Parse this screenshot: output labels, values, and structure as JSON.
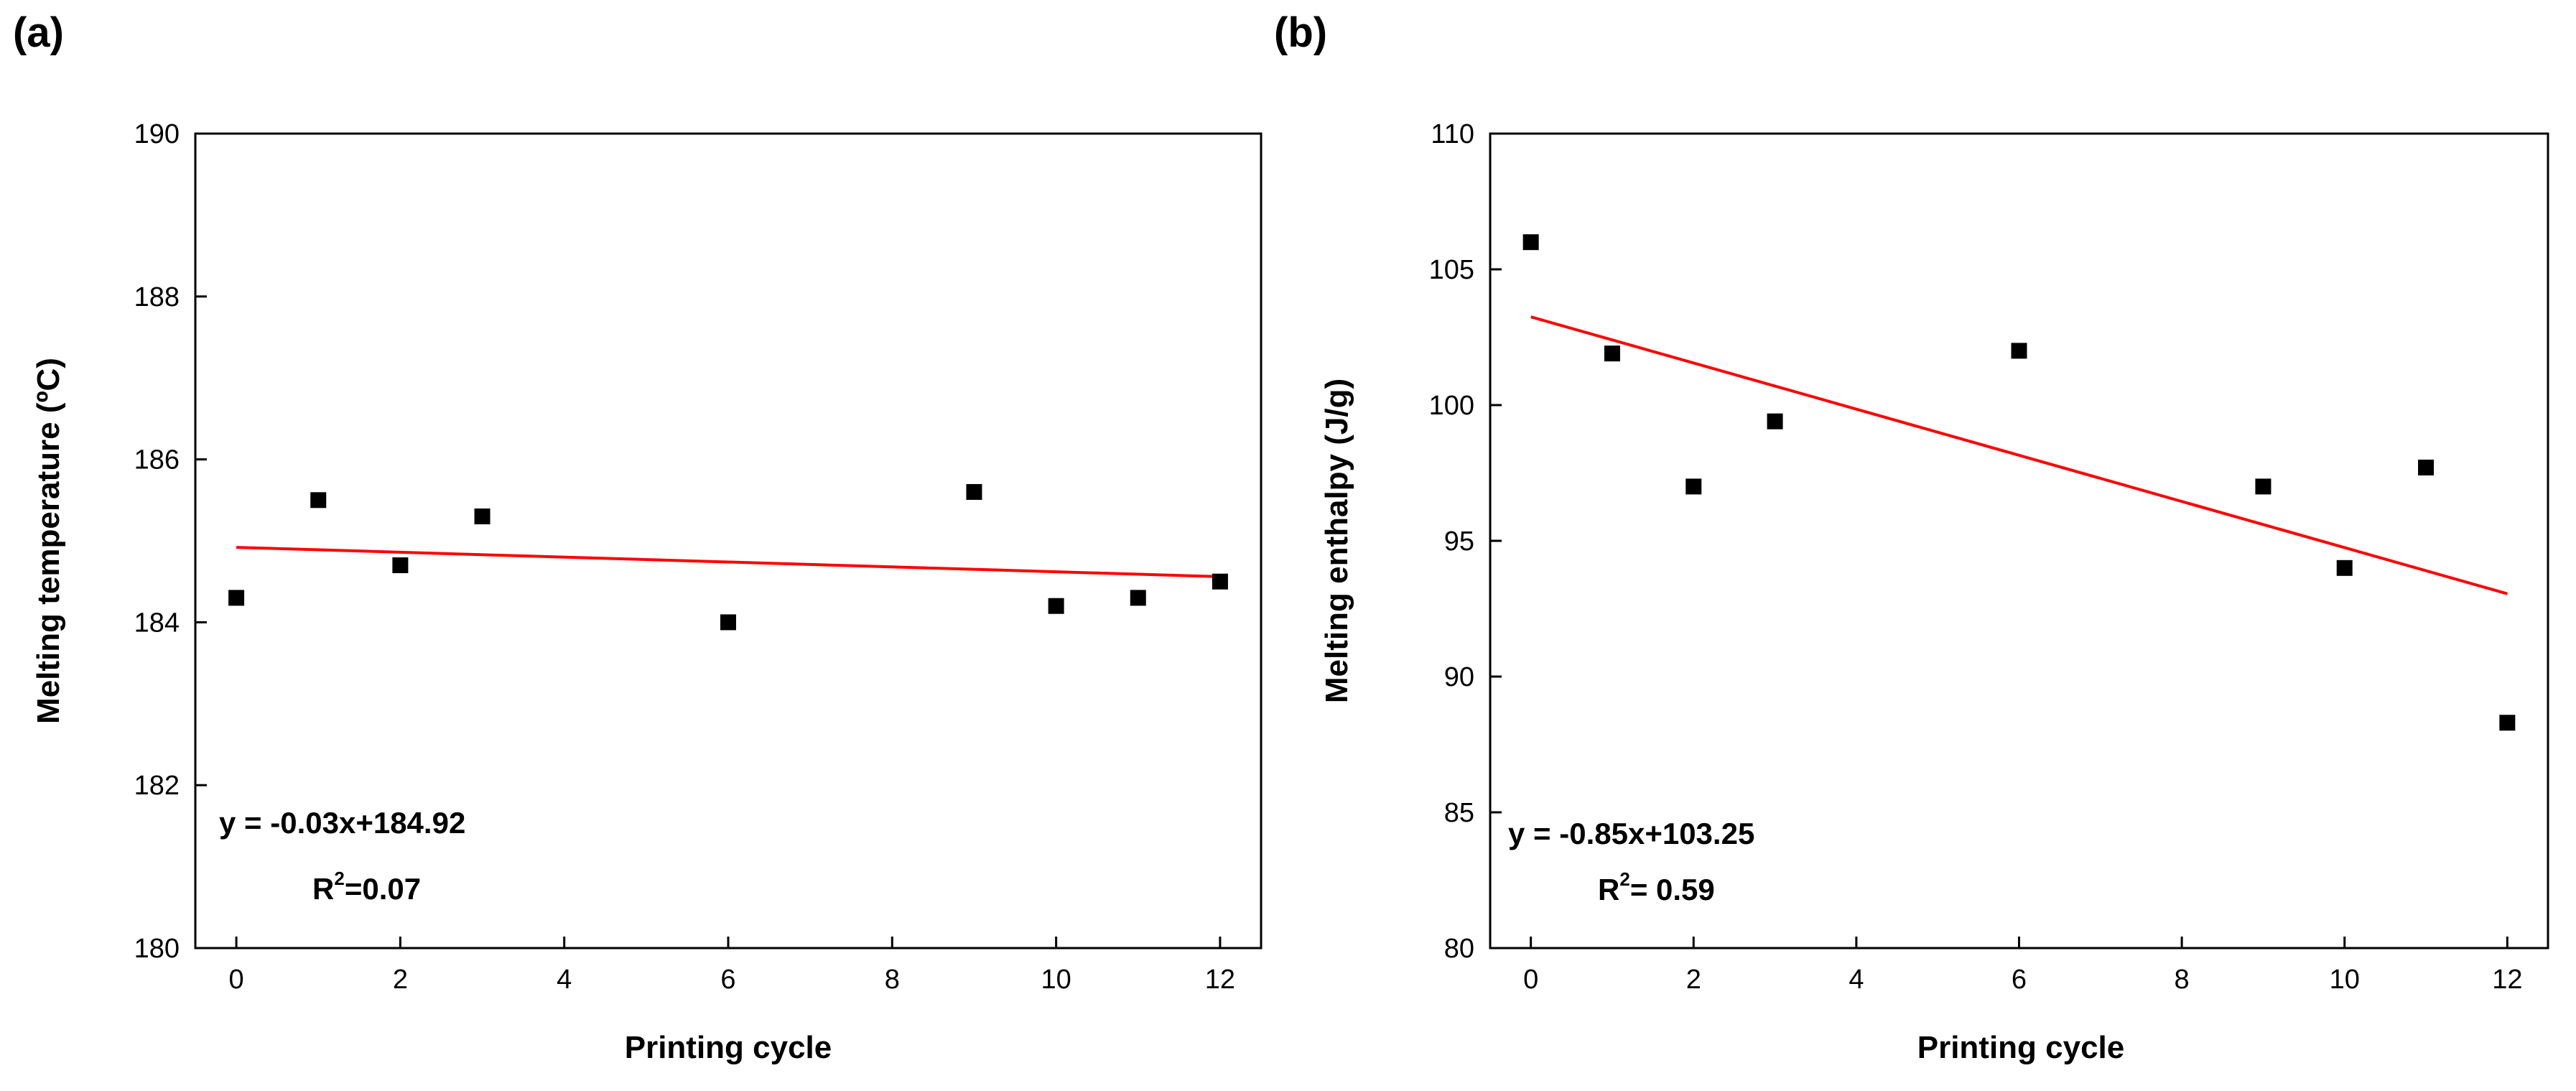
{
  "chart_data": [
    {
      "panel_label": "(a)",
      "type": "scatter",
      "title": "",
      "xlabel": "Printing cycle",
      "ylabel": "Melting temperature (ºC)",
      "xlim": [
        -0.5,
        12.5
      ],
      "ylim": [
        180,
        190
      ],
      "x_ticks": [
        0,
        2,
        4,
        6,
        8,
        10,
        12
      ],
      "y_ticks": [
        180,
        182,
        184,
        186,
        188,
        190
      ],
      "series": [
        {
          "name": "data",
          "x": [
            0,
            1,
            2,
            3,
            6,
            9,
            10,
            11,
            12
          ],
          "y": [
            184.3,
            185.5,
            184.7,
            185.3,
            184.0,
            185.6,
            184.2,
            184.3,
            184.5
          ],
          "marker": "square",
          "color": "#000000"
        }
      ],
      "fit": {
        "slope": -0.03,
        "intercept": 184.92,
        "x_range": [
          0,
          12
        ],
        "color": "#ff0000"
      },
      "equation": "y = -0.03x+184.92",
      "r2_prefix": "R",
      "r2_sup": "2",
      "r2_suffix": "=0.07"
    },
    {
      "panel_label": "(b)",
      "type": "scatter",
      "title": "",
      "xlabel": "Printing cycle",
      "ylabel": "Melting enthalpy (J/g)",
      "xlim": [
        -0.5,
        12.5
      ],
      "ylim": [
        80,
        110
      ],
      "x_ticks": [
        0,
        2,
        4,
        6,
        8,
        10,
        12
      ],
      "y_ticks": [
        80,
        85,
        90,
        95,
        100,
        105,
        110
      ],
      "series": [
        {
          "name": "data",
          "x": [
            0,
            1,
            2,
            3,
            6,
            9,
            10,
            11,
            12
          ],
          "y": [
            106.0,
            101.9,
            97.0,
            99.4,
            102.0,
            97.0,
            94.0,
            97.7,
            88.3
          ],
          "marker": "square",
          "color": "#000000"
        }
      ],
      "fit": {
        "slope": -0.85,
        "intercept": 103.25,
        "x_range": [
          0,
          12
        ],
        "color": "#ff0000"
      },
      "equation": "y = -0.85x+103.25",
      "r2_prefix": "R",
      "r2_sup": "2",
      "r2_suffix": "= 0.59"
    }
  ]
}
